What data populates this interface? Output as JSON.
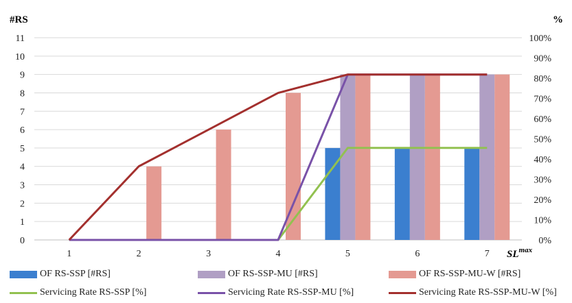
{
  "chart_data": {
    "type": "bar",
    "left_axis_title": "#RS",
    "right_axis_title": "%",
    "xlabel_main": "SL",
    "xlabel_sup": "max",
    "categories": [
      "1",
      "2",
      "3",
      "4",
      "5",
      "6",
      "7"
    ],
    "y_left": {
      "min": 0,
      "max": 11,
      "ticks": [
        "0",
        "1",
        "2",
        "3",
        "4",
        "5",
        "6",
        "7",
        "8",
        "9",
        "10",
        "11"
      ]
    },
    "y_right": {
      "min": 0,
      "max": 100,
      "ticks": [
        "0%",
        "10%",
        "20%",
        "30%",
        "40%",
        "50%",
        "60%",
        "70%",
        "80%",
        "90%",
        "100%"
      ]
    },
    "bar_series": [
      {
        "name": "OF RS-SSP [#RS]",
        "color": "#3b7fcf",
        "values": [
          0,
          0,
          0,
          0,
          5,
          5,
          5
        ]
      },
      {
        "name": "OF RS-SSP-MU [#RS]",
        "color": "#b09fc4",
        "values": [
          0,
          0,
          0,
          0,
          9,
          9,
          9
        ]
      },
      {
        "name": "OF RS-SSP-MU-W [#RS]",
        "color": "#e49a92",
        "values": [
          0,
          4,
          6,
          8,
          9,
          9,
          9
        ]
      }
    ],
    "line_series": [
      {
        "name": "Servicing Rate RS-SSP [%]",
        "color": "#92c150",
        "values": [
          0,
          0,
          0,
          0,
          45.5,
          45.5,
          45.5
        ]
      },
      {
        "name": "Servicing Rate RS-SSP-MU [%]",
        "color": "#7952a8",
        "values": [
          0,
          0,
          0,
          0,
          81.8,
          81.8,
          81.8
        ]
      },
      {
        "name": "Servicing Rate RS-SSP-MU-W [%]",
        "color": "#a3302e",
        "values": [
          0,
          36.4,
          54.5,
          72.7,
          81.8,
          81.8,
          81.8
        ]
      }
    ],
    "grid": true,
    "legend_position": "bottom"
  }
}
